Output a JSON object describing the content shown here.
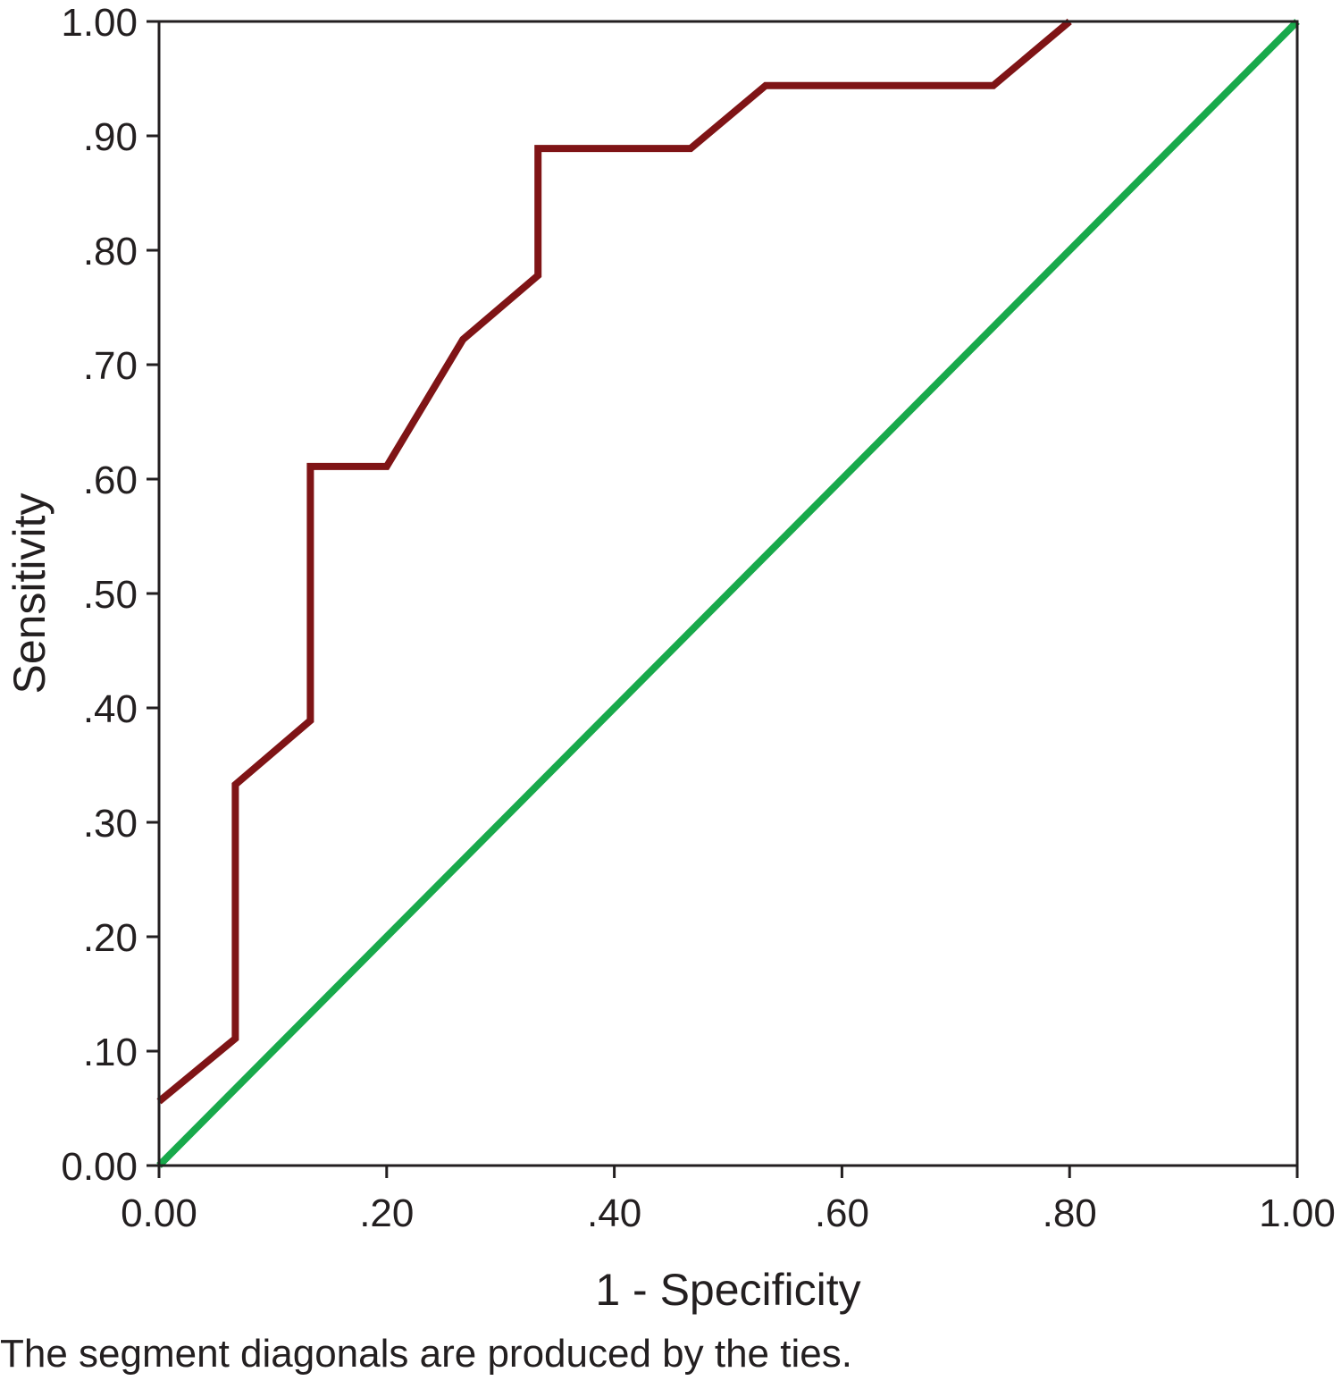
{
  "chart_data": {
    "type": "line",
    "title": "",
    "xlabel": "1 - Specificity",
    "ylabel": "Sensitivity",
    "xlim": [
      0,
      1
    ],
    "ylim": [
      0,
      1
    ],
    "x_ticks": [
      0,
      0.2,
      0.4,
      0.6,
      0.8,
      1.0
    ],
    "x_tick_labels": [
      "0.00",
      ".20",
      ".40",
      ".60",
      ".80",
      "1.00"
    ],
    "y_ticks": [
      0,
      0.1,
      0.2,
      0.3,
      0.4,
      0.5,
      0.6,
      0.7,
      0.8,
      0.9,
      1.0
    ],
    "y_tick_labels": [
      "0.00",
      ".10",
      ".20",
      ".30",
      ".40",
      ".50",
      ".60",
      ".70",
      ".80",
      ".90",
      "1.00"
    ],
    "grid": false,
    "legend": "none",
    "series": [
      {
        "color": "#7f1416",
        "x": [
          0,
          0.067,
          0.067,
          0.133,
          0.133,
          0.2,
          0.267,
          0.333,
          0.333,
          0.467,
          0.533,
          0.733,
          0.8
        ],
        "y": [
          0.056,
          0.111,
          0.333,
          0.389,
          0.611,
          0.611,
          0.722,
          0.778,
          0.889,
          0.889,
          0.944,
          0.944,
          1.0
        ]
      },
      {
        "color": "#18a94b",
        "x": [
          0,
          1
        ],
        "y": [
          0,
          1
        ]
      }
    ]
  },
  "footnote": "The segment diagonals are produced by the ties."
}
